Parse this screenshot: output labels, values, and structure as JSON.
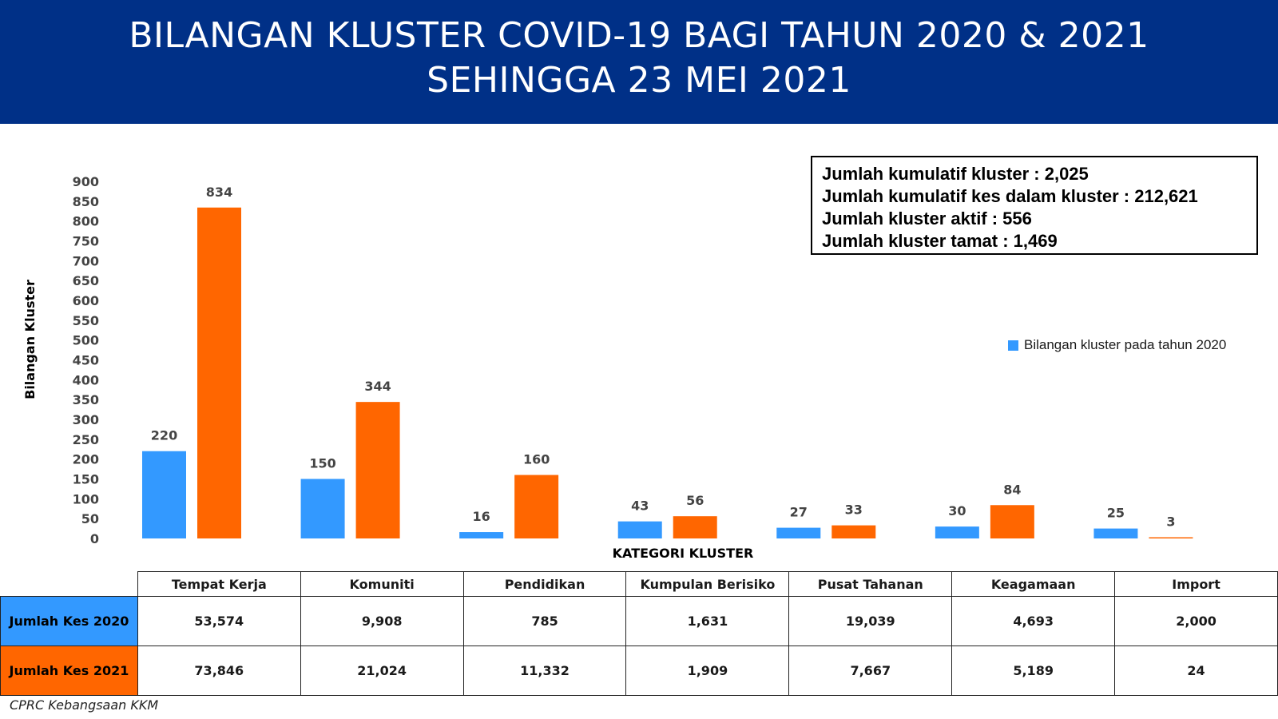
{
  "header": {
    "title_line1": "BILANGAN KLUSTER COVID-19 BAGI TAHUN 2020 & 2021",
    "title_line2": "SEHINGGA 23 MEI 2021"
  },
  "summary": {
    "line1": "Jumlah kumulatif kluster : 2,025",
    "line2": "Jumlah kumulatif kes dalam kluster : 212,621",
    "line3": "Jumlah kluster aktif : 556",
    "line4": "Jumlah kluster tamat : 1,469"
  },
  "colors": {
    "header_bg": "#003087",
    "series_2020": "#3399FF",
    "series_2021": "#FF6600"
  },
  "chart_data": {
    "type": "bar",
    "title": "",
    "xlabel": "KATEGORI KLUSTER",
    "ylabel": "Bilangan Kluster",
    "ylim": [
      0,
      900
    ],
    "yticks": [
      0,
      50,
      100,
      150,
      200,
      250,
      300,
      350,
      400,
      450,
      500,
      550,
      600,
      650,
      700,
      750,
      800,
      850,
      900
    ],
    "grid": false,
    "legend_position": "right",
    "categories": [
      "Tempat Kerja",
      "Komuniti",
      "Pendidikan",
      "Kumpulan Berisiko",
      "Pusat Tahanan",
      "Keagamaan",
      "Import"
    ],
    "series": [
      {
        "name": "Bilangan kluster pada tahun 2020",
        "color": "#3399FF",
        "values": [
          220,
          150,
          16,
          43,
          27,
          30,
          25
        ]
      },
      {
        "color": "#FF6600",
        "values": [
          834,
          344,
          160,
          56,
          33,
          84,
          3
        ]
      }
    ]
  },
  "table": {
    "headers": [
      "Tempat Kerja",
      "Komuniti",
      "Pendidikan",
      "Kumpulan Berisiko",
      "Pusat Tahanan",
      "Keagamaan",
      "Import"
    ],
    "rows": [
      {
        "label": "Jumlah Kes 2020",
        "color": "#3399FF",
        "values": [
          "53,574",
          "9,908",
          "785",
          "1,631",
          "19,039",
          "4,693",
          "2,000"
        ]
      },
      {
        "label": "Jumlah Kes 2021",
        "color": "#FF6600",
        "values": [
          "73,846",
          "21,024",
          "11,332",
          "1,909",
          "7,667",
          "5,189",
          "24"
        ]
      }
    ]
  },
  "source": "CPRC Kebangsaan KKM"
}
